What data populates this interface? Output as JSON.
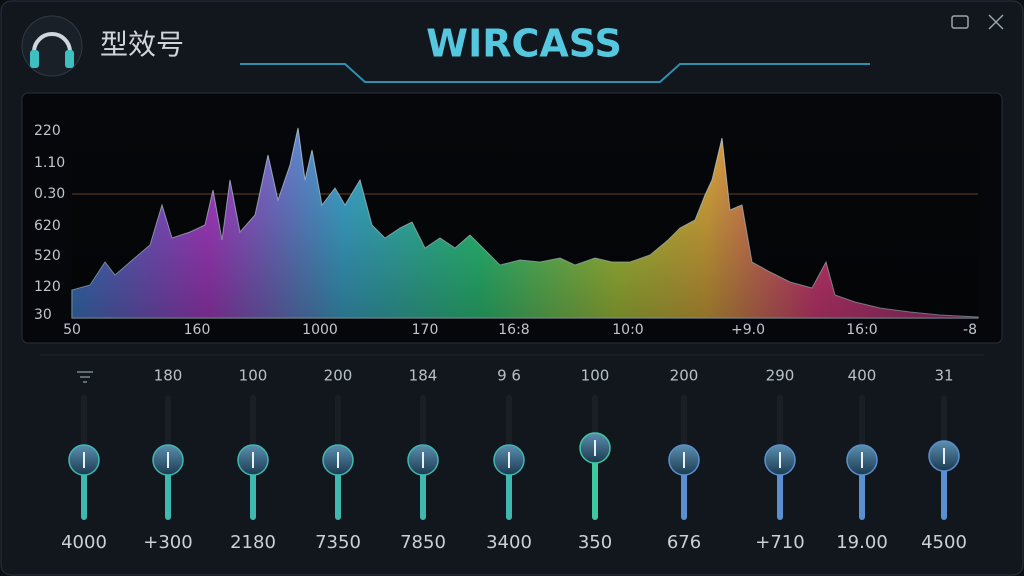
{
  "header": {
    "title": "型效号",
    "brand": "WIRCASS"
  },
  "spectrum": {
    "y_labels": [
      "220",
      "1.10",
      "0.30",
      "620",
      "520",
      "120",
      "30"
    ],
    "x_labels": [
      "50",
      "160",
      "1000",
      "170",
      "16:8",
      "10:0",
      "+9.0",
      "16:0",
      "-8"
    ]
  },
  "bands": [
    {
      "bottom": "4000"
    },
    {
      "top": "180",
      "bottom": "+300"
    },
    {
      "top": "100",
      "bottom": "2180"
    },
    {
      "top": "200",
      "bottom": "7350"
    },
    {
      "top": "184",
      "bottom": "7850"
    },
    {
      "top": "9 6",
      "bottom": "3400"
    },
    {
      "top": "100",
      "bottom": "350"
    },
    {
      "top": "200",
      "bottom": "676"
    },
    {
      "top": "290",
      "bottom": "+710"
    },
    {
      "top": "400",
      "bottom": "19.00"
    },
    {
      "top": "31",
      "bottom": "4500"
    }
  ]
}
